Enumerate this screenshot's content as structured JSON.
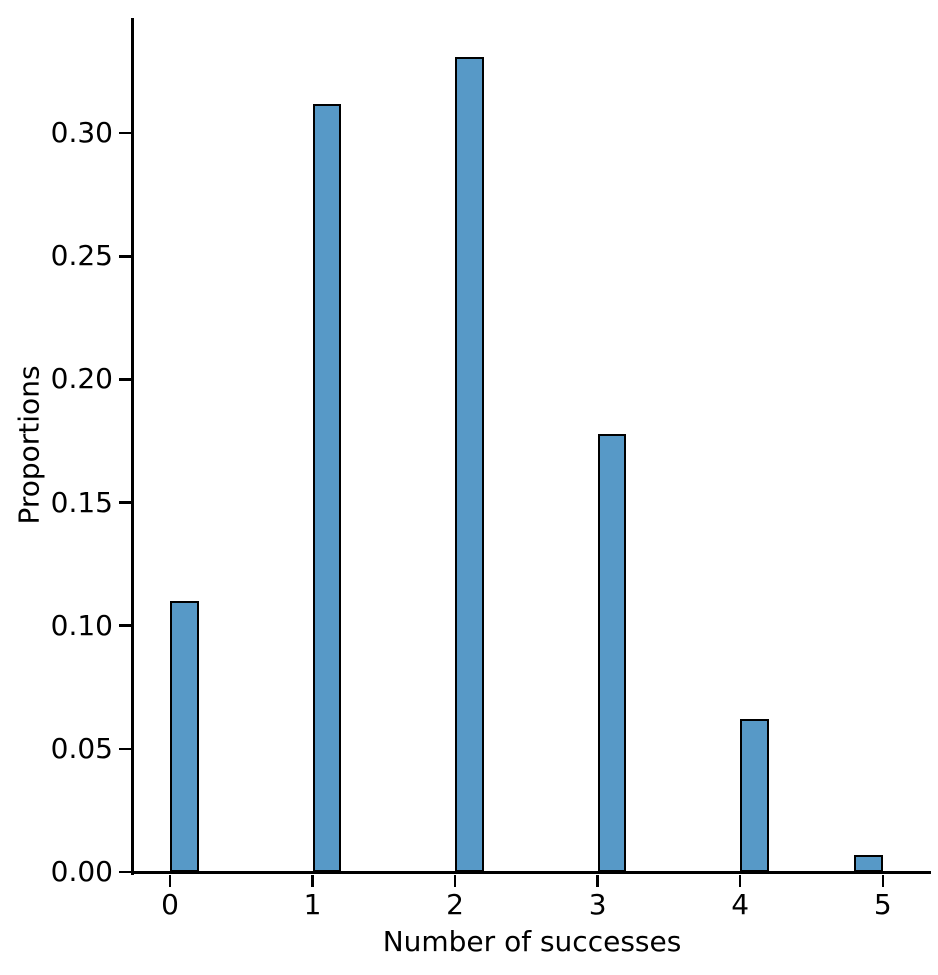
{
  "chart_data": {
    "type": "bar",
    "subtype": "histogram-of-discrete-outcomes",
    "title": "",
    "xlabel": "Number of successes",
    "ylabel": "Proportions",
    "categories": [
      "0",
      "1",
      "2",
      "3",
      "4",
      "5"
    ],
    "values": [
      0.11,
      0.312,
      0.331,
      0.178,
      0.062,
      0.007
    ],
    "bar_align": [
      "left",
      "left",
      "left",
      "left",
      "left",
      "right"
    ],
    "bar_width_units": 0.2,
    "yticks": [
      {
        "label": "0.00",
        "value": 0.0
      },
      {
        "label": "0.05",
        "value": 0.05
      },
      {
        "label": "0.10",
        "value": 0.1
      },
      {
        "label": "0.15",
        "value": 0.15
      },
      {
        "label": "0.20",
        "value": 0.2
      },
      {
        "label": "0.25",
        "value": 0.25
      },
      {
        "label": "0.30",
        "value": 0.3
      }
    ],
    "xlim": [
      -0.26,
      5.34
    ],
    "ylim": [
      0,
      0.3468
    ],
    "grid": false,
    "legend_position": "none",
    "colors": {
      "bar_fill": "#5799C7",
      "bar_edge": "#000000",
      "axis": "#000000",
      "text": "#000000",
      "background": "#ffffff"
    }
  }
}
